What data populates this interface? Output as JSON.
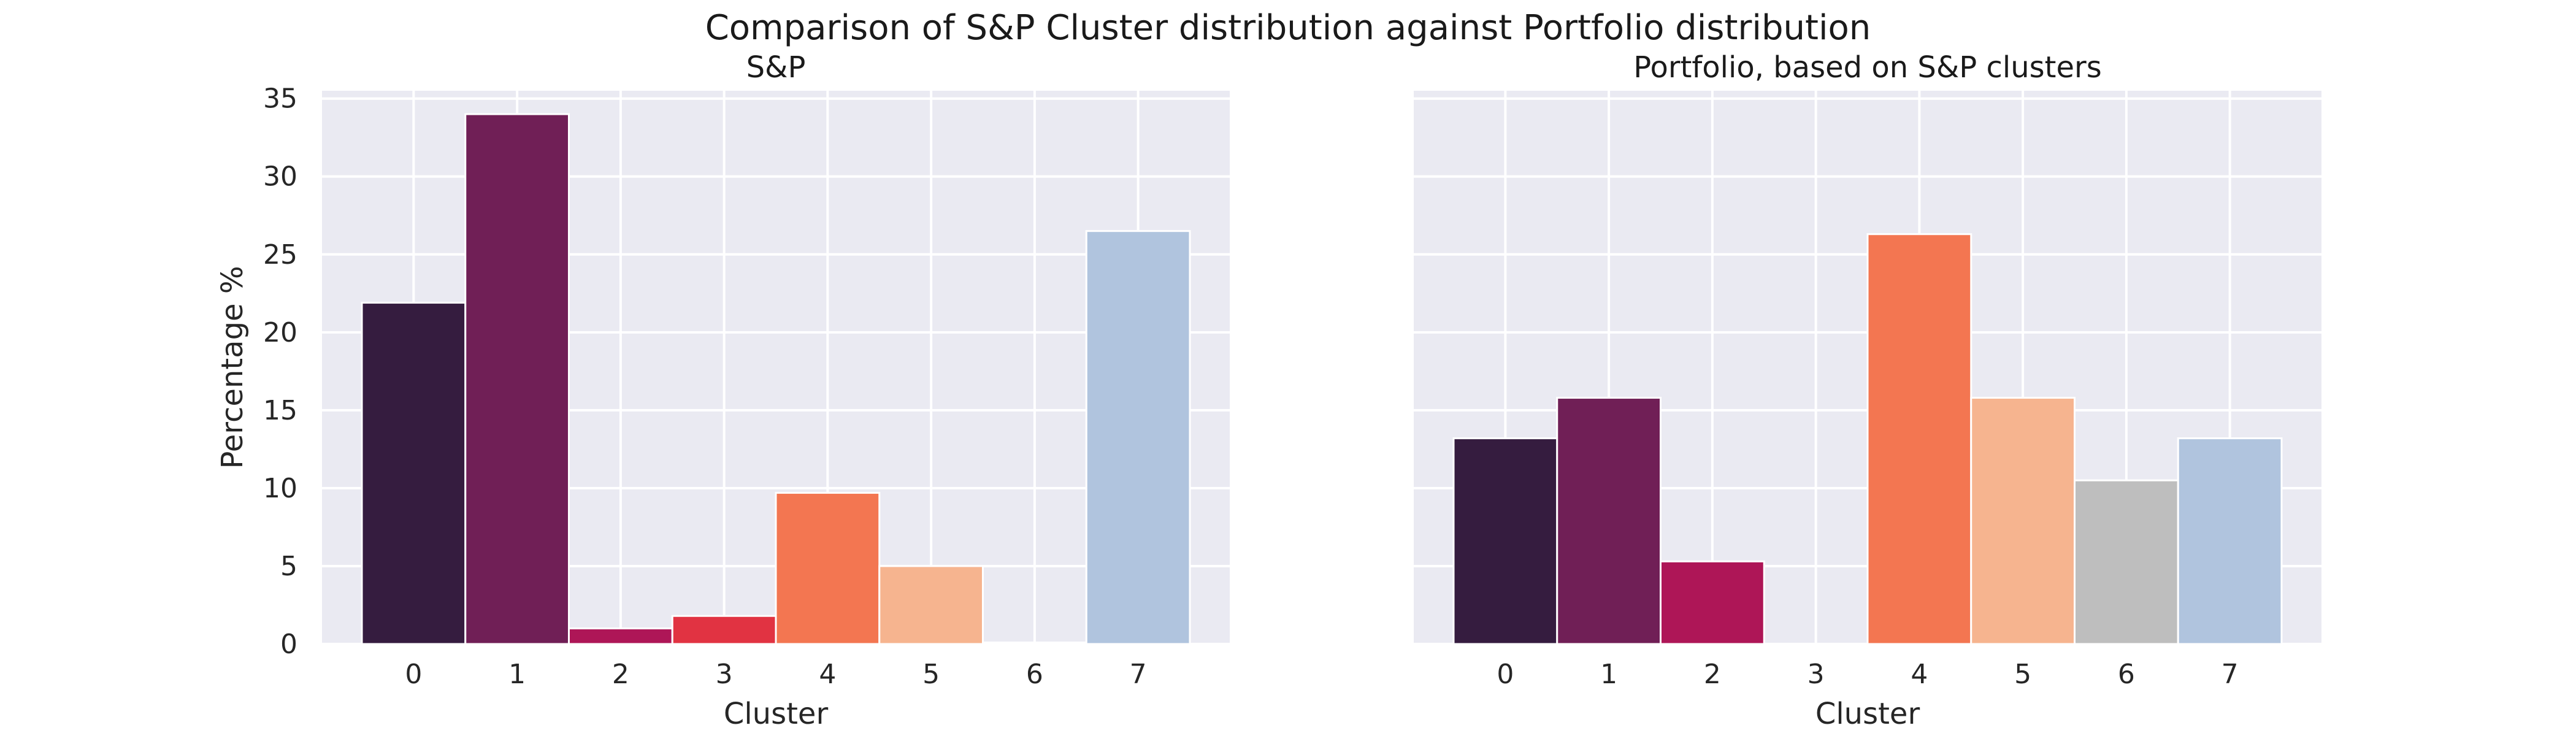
{
  "figure_title": "Comparison of S&P Cluster distribution against Portfolio distribution",
  "chart_data": [
    {
      "type": "bar",
      "title": "S&P",
      "xlabel": "Cluster",
      "ylabel": "Percentage %",
      "categories": [
        "0",
        "1",
        "2",
        "3",
        "4",
        "5",
        "6",
        "7"
      ],
      "values": [
        21.9,
        34.0,
        1.0,
        1.8,
        9.7,
        5.0,
        0.1,
        26.5
      ],
      "colors": [
        "#351c3f",
        "#701f56",
        "#ae1657",
        "#e13342",
        "#f37651",
        "#f6b48f",
        "#bebebe",
        "#b0c4de"
      ],
      "ylim": [
        0,
        35.5
      ],
      "yticks": [
        0,
        5,
        10,
        15,
        20,
        25,
        30,
        35
      ],
      "grid": true
    },
    {
      "type": "bar",
      "title": "Portfolio, based on S&P clusters",
      "xlabel": "Cluster",
      "ylabel": "",
      "categories": [
        "0",
        "1",
        "2",
        "3",
        "4",
        "5",
        "6",
        "7"
      ],
      "values": [
        13.2,
        15.8,
        5.3,
        0,
        26.3,
        15.8,
        10.5,
        13.2
      ],
      "colors": [
        "#351c3f",
        "#701f56",
        "#ae1657",
        "#e13342",
        "#f37651",
        "#f6b48f",
        "#bebebe",
        "#b0c4de"
      ],
      "ylim": [
        0,
        35.5
      ],
      "yticks": [
        0,
        5,
        10,
        15,
        20,
        25,
        30,
        35
      ],
      "grid": true
    }
  ]
}
